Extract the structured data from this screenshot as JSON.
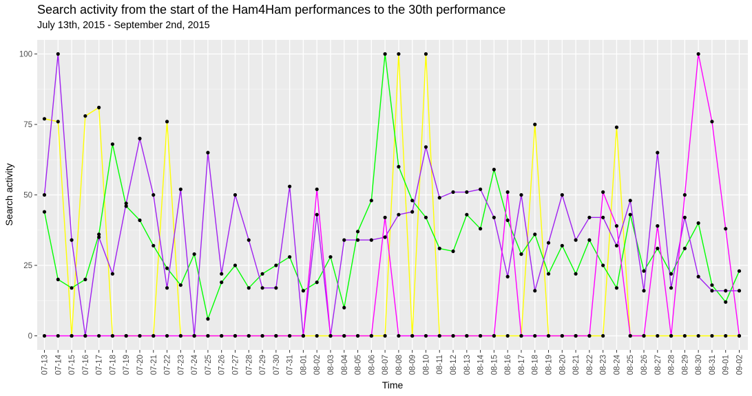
{
  "chart_data": {
    "type": "line",
    "title": "Search activity from the start of the Ham4Ham performances to the 30th performance",
    "subtitle": "July 13th, 2015 - September 2nd, 2015",
    "xlabel": "Time",
    "ylabel": "Search activity",
    "ylim": [
      -5,
      105
    ],
    "yticks": [
      0,
      25,
      50,
      75,
      100
    ],
    "grid": true,
    "legend": "none",
    "categories": [
      "07-13",
      "07-14",
      "07-15",
      "07-16",
      "07-17",
      "07-18",
      "07-19",
      "07-20",
      "07-21",
      "07-22",
      "07-23",
      "07-24",
      "07-25",
      "07-26",
      "07-27",
      "07-28",
      "07-29",
      "07-30",
      "07-31",
      "08-01",
      "08-02",
      "08-03",
      "08-04",
      "08-05",
      "08-06",
      "08-07",
      "08-08",
      "08-09",
      "08-10",
      "08-11",
      "08-12",
      "08-13",
      "08-14",
      "08-15",
      "08-16",
      "08-17",
      "08-18",
      "08-19",
      "08-20",
      "08-21",
      "08-22",
      "08-23",
      "08-24",
      "08-25",
      "08-26",
      "08-27",
      "08-28",
      "08-29",
      "08-30",
      "08-31",
      "09-01",
      "09-02"
    ],
    "series": [
      {
        "color": "#ffff00",
        "values": [
          77,
          76,
          0,
          78,
          81,
          0,
          0,
          0,
          0,
          76,
          0,
          0,
          0,
          0,
          0,
          0,
          0,
          0,
          0,
          0,
          0,
          0,
          0,
          0,
          0,
          0,
          100,
          0,
          100,
          0,
          0,
          0,
          0,
          0,
          0,
          0,
          75,
          0,
          0,
          0,
          0,
          0,
          74,
          0,
          0,
          0,
          0,
          0,
          0,
          0,
          0,
          0
        ]
      },
      {
        "color": "#00ff00",
        "values": [
          44,
          20,
          17,
          20,
          36,
          68,
          46,
          41,
          32,
          24,
          18,
          29,
          6,
          19,
          25,
          17,
          22,
          25,
          28,
          16,
          19,
          28,
          10,
          37,
          48,
          100,
          60,
          48,
          42,
          31,
          30,
          43,
          38,
          59,
          41,
          29,
          36,
          22,
          32,
          22,
          34,
          25,
          17,
          43,
          23,
          31,
          22,
          31,
          40,
          18,
          12,
          23
        ]
      },
      {
        "color": "#a020f0",
        "values": [
          50,
          100,
          34,
          0,
          35,
          22,
          47,
          70,
          50,
          17,
          52,
          0,
          65,
          22,
          50,
          34,
          17,
          17,
          53,
          0,
          43,
          0,
          34,
          34,
          34,
          35,
          43,
          44,
          67,
          49,
          51,
          51,
          52,
          42,
          21,
          50,
          16,
          33,
          50,
          34,
          42,
          42,
          32,
          48,
          16,
          65,
          17,
          42,
          21,
          16,
          16,
          16
        ]
      },
      {
        "color": "#ff00ff",
        "values": [
          0,
          0,
          0,
          0,
          0,
          0,
          0,
          0,
          0,
          0,
          0,
          0,
          0,
          0,
          0,
          0,
          0,
          0,
          0,
          0,
          52,
          0,
          0,
          0,
          0,
          42,
          0,
          0,
          0,
          0,
          0,
          0,
          0,
          0,
          51,
          0,
          0,
          0,
          0,
          0,
          0,
          51,
          39,
          0,
          0,
          39,
          0,
          50,
          100,
          76,
          38,
          0
        ]
      }
    ]
  }
}
